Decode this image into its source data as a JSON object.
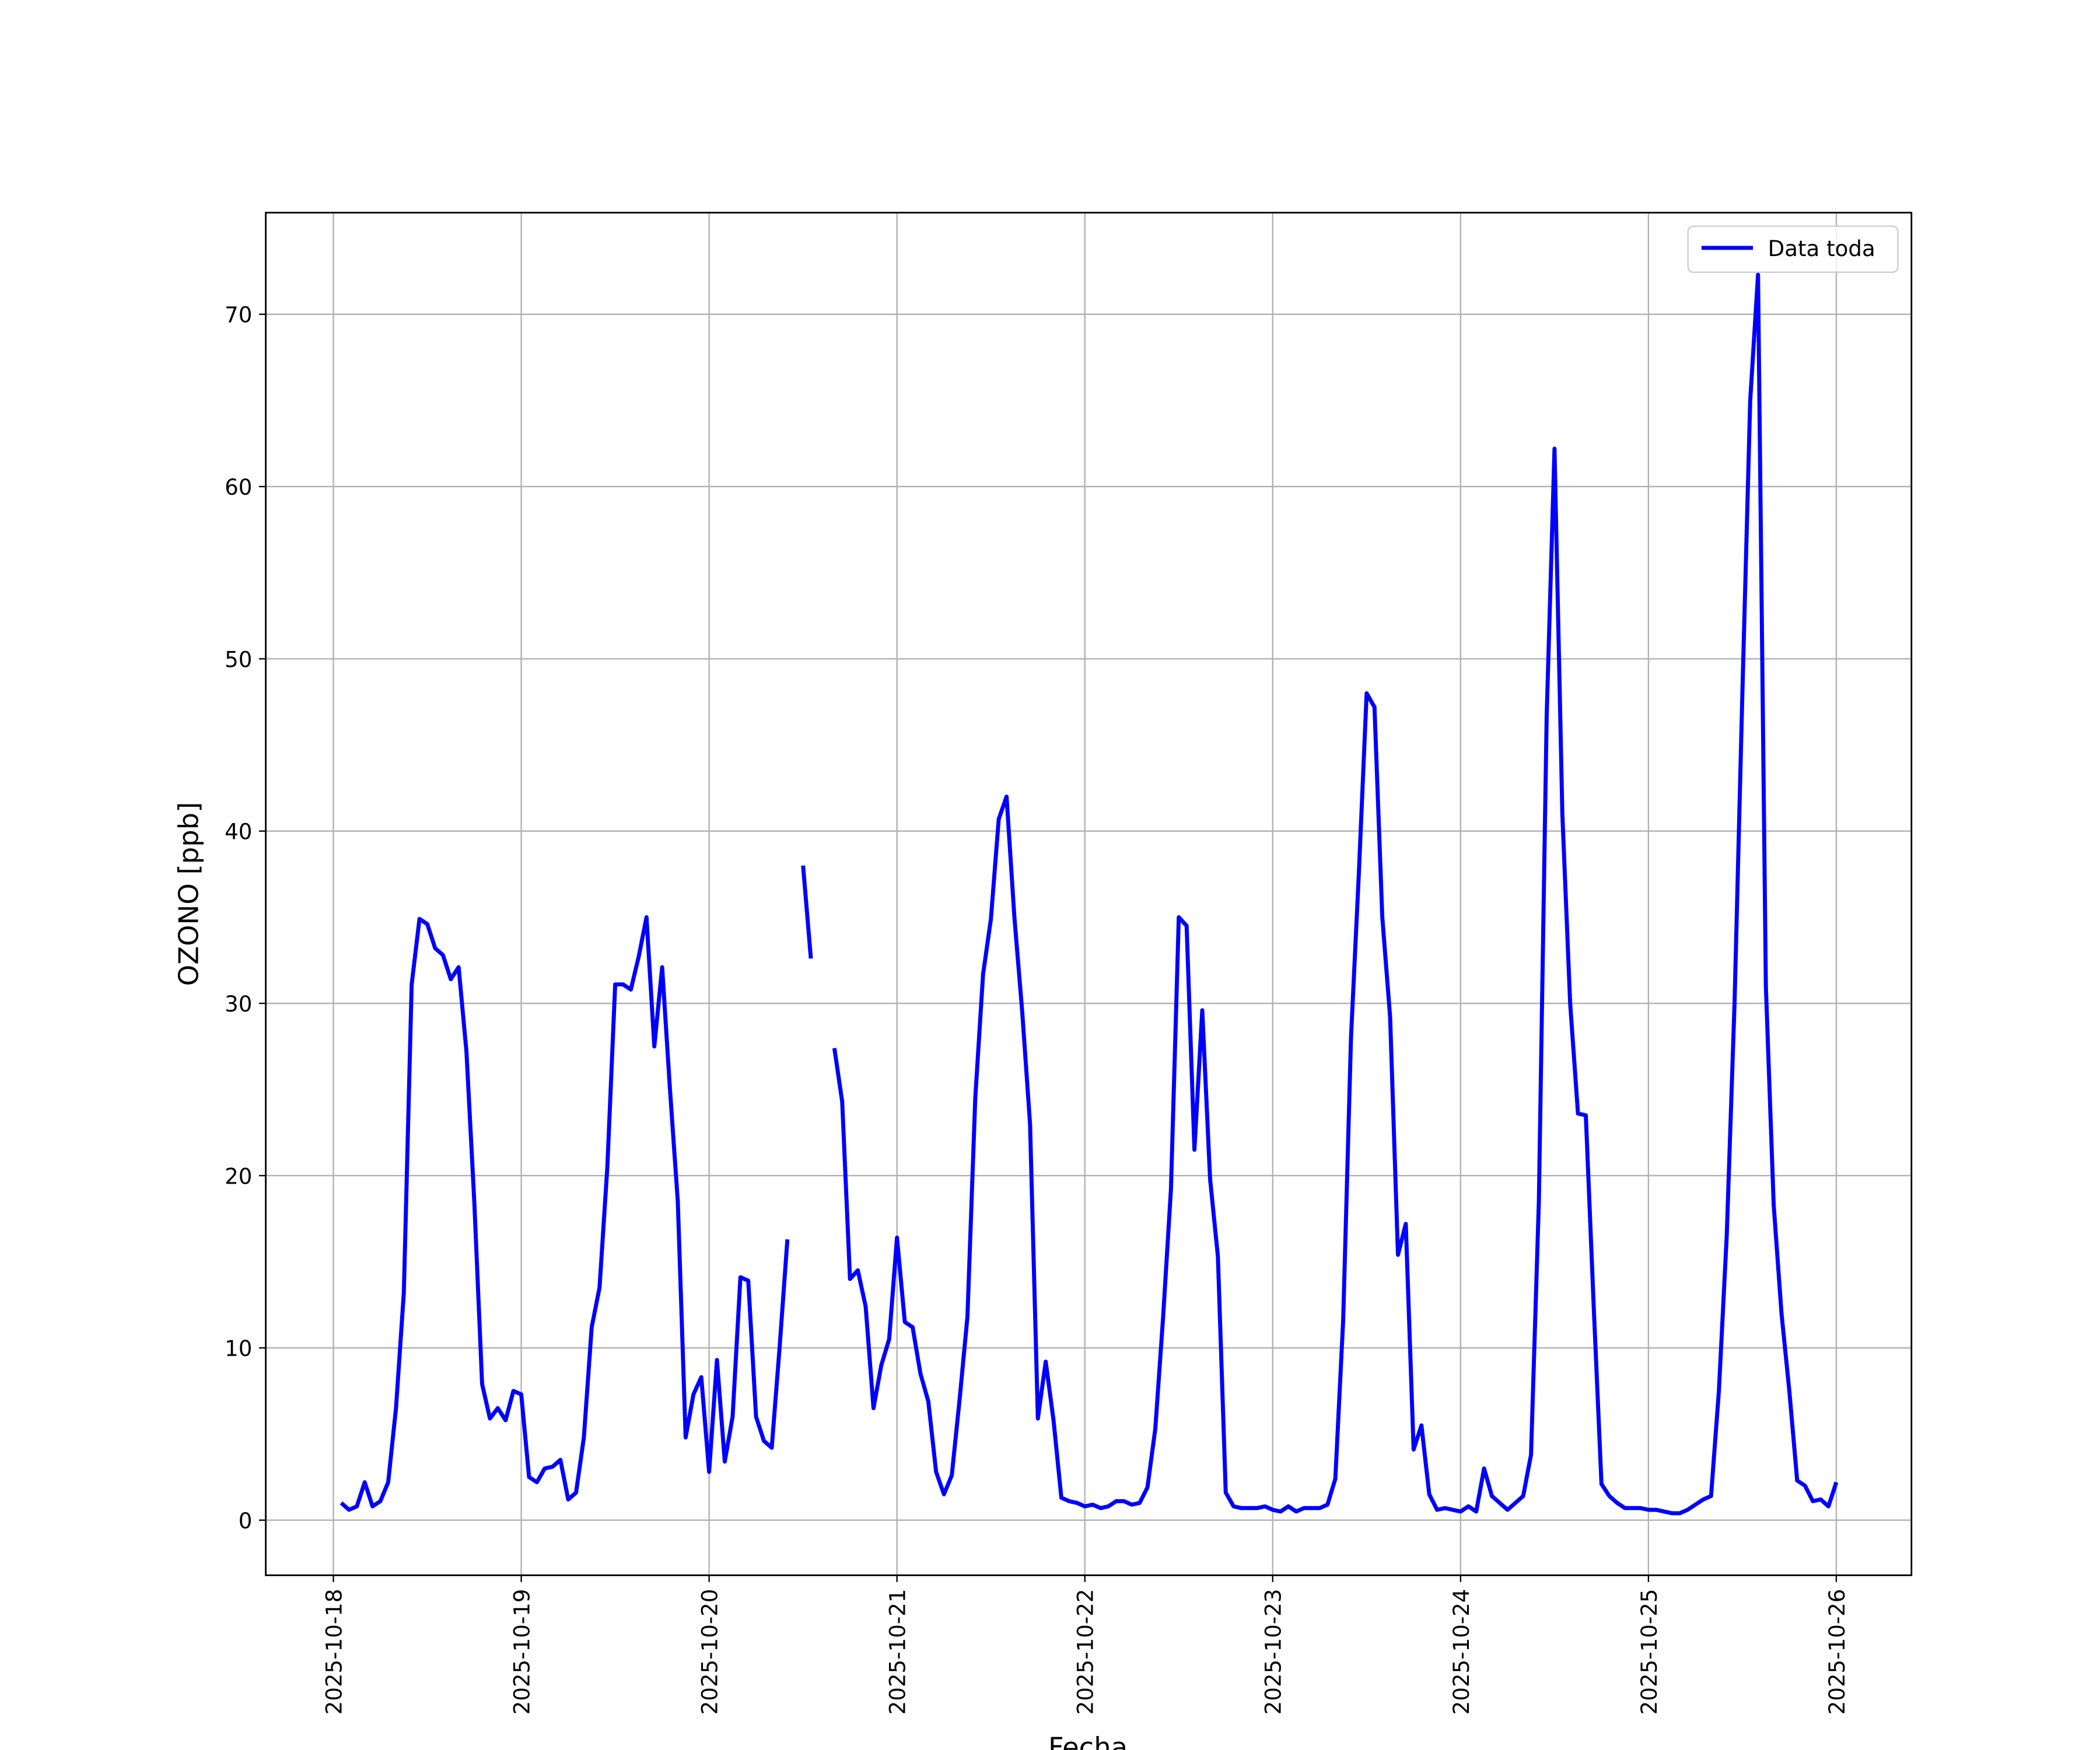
{
  "chart_data": {
    "type": "line",
    "xlabel": "Fecha",
    "ylabel": "OZONO [ppb]",
    "x": [
      20379.0417,
      20379.0833,
      20379.125,
      20379.1667,
      20379.2083,
      20379.25,
      20379.2917,
      20379.3333,
      20379.375,
      20379.4167,
      20379.4583,
      20379.5,
      20379.5417,
      20379.5833,
      20379.625,
      20379.6667,
      20379.7083,
      20379.75,
      20379.7917,
      20379.8333,
      20379.875,
      20379.9167,
      20379.9583,
      20380,
      20380.0417,
      20380.0833,
      20380.125,
      20380.1667,
      20380.2083,
      20380.25,
      20380.2917,
      20380.3333,
      20380.375,
      20380.4167,
      20380.4583,
      20380.5,
      20380.5417,
      20380.5833,
      20380.625,
      20380.6667,
      20380.7083,
      20380.75,
      20380.7917,
      20380.8333,
      20380.875,
      20380.9167,
      20380.9583,
      20381,
      20381.0417,
      20381.0833,
      20381.125,
      20381.1667,
      20381.2083,
      20381.25,
      20381.2917,
      20381.3333,
      20381.375,
      20381.4167,
      20381.4583,
      20381.5,
      20381.5417,
      20381.5833,
      20381.625,
      20381.6667,
      20381.7083,
      20381.75,
      20381.7917,
      20381.8333,
      20381.875,
      20381.9167,
      20381.9583,
      20382,
      20382.0417,
      20382.0833,
      20382.125,
      20382.1667,
      20382.2083,
      20382.25,
      20382.2917,
      20382.3333,
      20382.375,
      20382.4167,
      20382.4583,
      20382.5,
      20382.5417,
      20382.5833,
      20382.625,
      20382.6667,
      20382.7083,
      20382.75,
      20382.7917,
      20382.8333,
      20382.875,
      20382.9167,
      20382.9583,
      20383,
      20383.0417,
      20383.0833,
      20383.125,
      20383.1667,
      20383.2083,
      20383.25,
      20383.2917,
      20383.3333,
      20383.375,
      20383.4167,
      20383.4583,
      20383.5,
      20383.5417,
      20383.5833,
      20383.625,
      20383.6667,
      20383.7083,
      20383.75,
      20383.7917,
      20383.8333,
      20383.875,
      20383.9167,
      20383.9583,
      20384,
      20384.0417,
      20384.0833,
      20384.125,
      20384.1667,
      20384.2083,
      20384.25,
      20384.2917,
      20384.3333,
      20384.375,
      20384.4167,
      20384.4583,
      20384.5,
      20384.5417,
      20384.5833,
      20384.625,
      20384.6667,
      20384.7083,
      20384.75,
      20384.7917,
      20384.8333,
      20384.875,
      20384.9167,
      20384.9583,
      20385,
      20385.0417,
      20385.0833,
      20385.125,
      20385.1667,
      20385.2083,
      20385.25,
      20385.2917,
      20385.3333,
      20385.375,
      20385.4167,
      20385.4583,
      20385.5,
      20385.5417,
      20385.5833,
      20385.625,
      20385.6667,
      20385.7083,
      20385.75,
      20385.7917,
      20385.8333,
      20385.875,
      20385.9167,
      20385.9583,
      20386,
      20386.0417,
      20386.0833,
      20386.125,
      20386.1667,
      20386.2083,
      20386.25,
      20386.2917,
      20386.3333,
      20386.375,
      20386.4167,
      20386.4583,
      20386.5,
      20386.5417,
      20386.5833,
      20386.625,
      20386.6667,
      20386.7083,
      20386.75,
      20386.7917,
      20386.8333,
      20386.875,
      20386.9167,
      20386.9583,
      20387
    ],
    "series": [
      {
        "name": "Data toda",
        "color": "#0000ff",
        "values": [
          1.0,
          0.6,
          0.8,
          2.2,
          0.8,
          1.1,
          2.2,
          6.5,
          13.2,
          31.1,
          34.9,
          34.6,
          33.2,
          32.8,
          31.4,
          32.1,
          27.2,
          18.5,
          7.9,
          5.9,
          6.5,
          5.8,
          7.5,
          7.3,
          2.5,
          2.2,
          3.0,
          3.1,
          3.5,
          1.2,
          1.6,
          4.8,
          11.2,
          13.5,
          20.5,
          31.1,
          31.1,
          30.8,
          32.7,
          35.0,
          27.5,
          32.1,
          25.0,
          18.5,
          4.8,
          7.3,
          8.3,
          2.8,
          9.3,
          3.4,
          6.0,
          14.1,
          13.9,
          6.0,
          4.6,
          4.2,
          10.0,
          16.3,
          null,
          38.0,
          32.6,
          null,
          null,
          27.4,
          24.3,
          14.0,
          14.5,
          12.4,
          6.5,
          9.0,
          10.5,
          16.4,
          11.5,
          11.2,
          8.5,
          6.9,
          2.8,
          1.5,
          2.6,
          7.0,
          11.8,
          24.5,
          31.7,
          34.9,
          40.7,
          42.0,
          35.0,
          29.5,
          23.0,
          5.9,
          9.2,
          5.8,
          1.3,
          1.1,
          1.0,
          0.8,
          0.9,
          0.7,
          0.8,
          1.1,
          1.1,
          0.9,
          1.0,
          1.9,
          5.3,
          11.8,
          19.2,
          35.0,
          34.5,
          21.5,
          29.6,
          19.8,
          15.3,
          1.6,
          0.8,
          0.7,
          0.7,
          0.7,
          0.8,
          0.6,
          0.5,
          0.8,
          0.5,
          0.7,
          0.7,
          0.7,
          0.9,
          2.4,
          11.6,
          28.0,
          37.5,
          48.0,
          47.2,
          35.0,
          29.2,
          15.4,
          17.2,
          4.1,
          5.5,
          1.5,
          0.6,
          0.7,
          0.6,
          0.5,
          0.8,
          0.5,
          3.0,
          1.4,
          1.0,
          0.6,
          1.0,
          1.4,
          3.8,
          18.5,
          46.7,
          62.2,
          41.0,
          30.0,
          23.6,
          23.5,
          12.5,
          2.1,
          1.4,
          1.0,
          0.7,
          0.7,
          0.7,
          0.6,
          0.6,
          0.5,
          0.4,
          0.4,
          0.6,
          0.9,
          1.2,
          1.4,
          7.5,
          16.5,
          30.0,
          48.0,
          65.0,
          72.3,
          31.0,
          18.3,
          12.0,
          7.5,
          2.3,
          2.0,
          1.1,
          1.2,
          0.8,
          2.2
        ]
      }
    ],
    "xlim": [
      20378.64,
      20387.4
    ],
    "xticks": [
      {
        "value": 20379,
        "label": "2025-10-18"
      },
      {
        "value": 20380,
        "label": "2025-10-19"
      },
      {
        "value": 20381,
        "label": "2025-10-20"
      },
      {
        "value": 20382,
        "label": "2025-10-21"
      },
      {
        "value": 20383,
        "label": "2025-10-22"
      },
      {
        "value": 20384,
        "label": "2025-10-23"
      },
      {
        "value": 20385,
        "label": "2025-10-24"
      },
      {
        "value": 20386,
        "label": "2025-10-25"
      },
      {
        "value": 20387,
        "label": "2025-10-26"
      }
    ],
    "ylim": [
      -3.2,
      75.9
    ],
    "yticks": [
      0,
      10,
      20,
      30,
      40,
      50,
      60,
      70
    ],
    "grid": true,
    "legend": "upper right"
  }
}
